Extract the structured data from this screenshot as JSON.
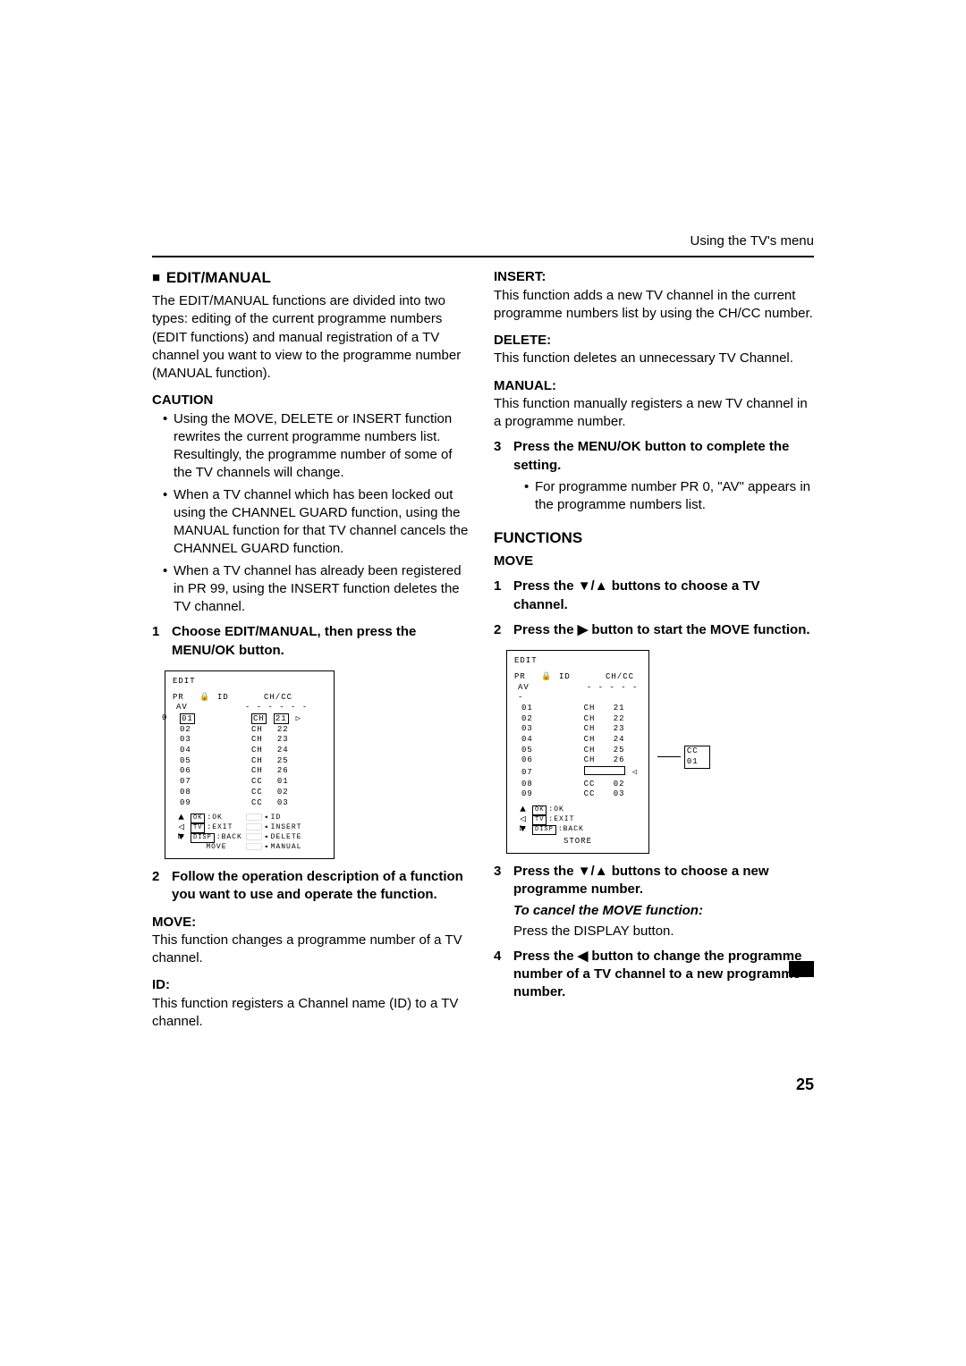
{
  "meta": {
    "header": "Using the TV's menu",
    "page_number": "25"
  },
  "left": {
    "title": "EDIT/MANUAL",
    "intro": "The EDIT/MANUAL functions are divided into two types: editing of the current programme numbers (EDIT functions) and manual registration of a TV channel you want to view to the programme number (MANUAL function).",
    "caution_title": "CAUTION",
    "caution_items": [
      "Using the MOVE, DELETE or INSERT function rewrites the current programme numbers list.\nResultingly, the programme number of some of the TV channels will change.",
      "When a TV channel which has been locked out using the CHANNEL GUARD function, using the MANUAL function for that TV channel cancels the CHANNEL GUARD function.",
      "When a TV channel has already been registered in PR 99, using the INSERT function deletes the TV channel."
    ],
    "step1": "Choose EDIT/MANUAL, then press the MENU/OK button.",
    "step2": "Follow the operation description of a function you want to use and operate the function.",
    "move_t": "MOVE:",
    "move_b": "This function changes a programme number of a TV channel.",
    "id_t": "ID:",
    "id_b": "This function registers a Channel name (ID) to a TV channel."
  },
  "right": {
    "insert_t": "INSERT:",
    "insert_b": "This function adds a new TV channel in the current programme numbers list by using the CH/CC number.",
    "delete_t": "DELETE:",
    "delete_b": "This function deletes an unnecessary TV Channel.",
    "manual_t": "MANUAL:",
    "manual_b": "This function manually registers a new TV channel in a programme number.",
    "step3": "Press the MENU/OK button to complete the setting.",
    "step3_sub": "For programme number PR 0, \"AV\" appears in the programme numbers list.",
    "func_title": "FUNCTIONS",
    "func_move": "MOVE",
    "fs1": "Press the ▼/▲ buttons to choose a TV channel.",
    "fs2": "Press the ▶ button to start the MOVE function.",
    "fs3": "Press the ▼/▲ buttons to choose a new programme number.",
    "fs3_cancel_t": "To cancel the MOVE function:",
    "fs3_cancel_b": "Press the DISPLAY button.",
    "fs4": "Press the ◀ button to change the programme number of a TV channel to a new programme number."
  },
  "diagram1": {
    "title": "EDIT",
    "hdr_pr": "PR",
    "hdr_lock": "🔒",
    "hdr_id": "ID",
    "hdr_ch": "CH/CC",
    "av": "AV",
    "rows": [
      {
        "pr": "01",
        "ch": "CH",
        "cc": "21",
        "boxed": true
      },
      {
        "pr": "02",
        "ch": "CH",
        "cc": "22"
      },
      {
        "pr": "03",
        "ch": "CH",
        "cc": "23"
      },
      {
        "pr": "04",
        "ch": "CH",
        "cc": "24"
      },
      {
        "pr": "05",
        "ch": "CH",
        "cc": "25"
      },
      {
        "pr": "06",
        "ch": "CH",
        "cc": "26"
      },
      {
        "pr": "07",
        "ch": "CC",
        "cc": "01"
      },
      {
        "pr": "08",
        "ch": "CC",
        "cc": "02"
      },
      {
        "pr": "09",
        "ch": "CC",
        "cc": "03"
      }
    ],
    "buttons": [
      [
        "OK",
        ":OK"
      ],
      [
        "TV",
        ":EXIT"
      ],
      [
        "DISP",
        ":BACK"
      ]
    ],
    "colors": [
      "ID",
      "INSERT",
      "DELETE",
      "MANUAL"
    ],
    "move": "MOVE"
  },
  "diagram2": {
    "title": "EDIT",
    "hdr_pr": "PR",
    "hdr_lock": "🔒",
    "hdr_id": "ID",
    "hdr_ch": "CH/CC",
    "av": "AV",
    "rows": [
      {
        "pr": "01",
        "ch": "CH",
        "cc": "21"
      },
      {
        "pr": "02",
        "ch": "CH",
        "cc": "22"
      },
      {
        "pr": "03",
        "ch": "CH",
        "cc": "23"
      },
      {
        "pr": "04",
        "ch": "CH",
        "cc": "24"
      },
      {
        "pr": "05",
        "ch": "CH",
        "cc": "25"
      },
      {
        "pr": "06",
        "ch": "CH",
        "cc": "26"
      },
      {
        "pr": "07",
        "ch": "",
        "cc": "",
        "sel": true
      },
      {
        "pr": "08",
        "ch": "CC",
        "cc": "02"
      },
      {
        "pr": "09",
        "ch": "CC",
        "cc": "03"
      }
    ],
    "buttons": [
      [
        "OK",
        ":OK"
      ],
      [
        "TV",
        ":EXIT"
      ],
      [
        "DISP",
        ":BACK"
      ]
    ],
    "store": "STORE",
    "aside": "CC  01"
  }
}
